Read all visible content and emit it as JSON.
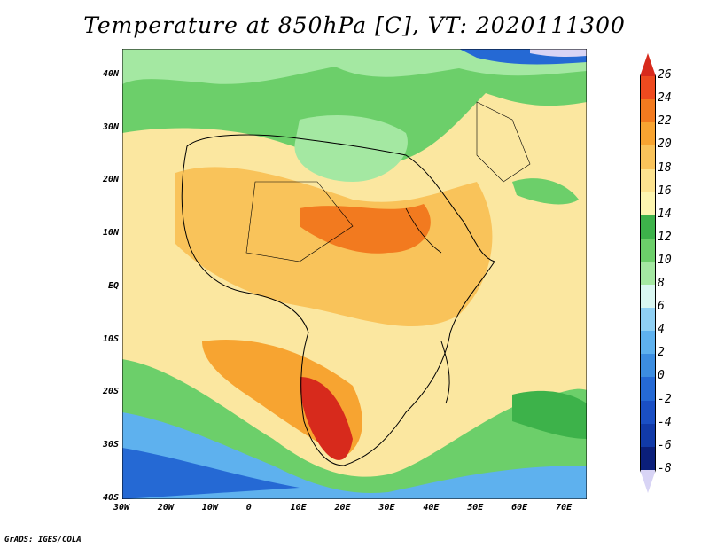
{
  "title": "Temperature at 850hPa [C], VT: 2020111300",
  "footer": "GrADS: IGES/COLA",
  "map": {
    "region": "Africa",
    "lon_range": [
      -30,
      75
    ],
    "lat_range": [
      -40,
      45
    ],
    "lon_ticks": [
      "30W",
      "20W",
      "10W",
      "0",
      "10E",
      "20E",
      "30E",
      "40E",
      "50E",
      "60E",
      "70E"
    ],
    "lat_ticks": [
      "40N",
      "30N",
      "20N",
      "10N",
      "EQ",
      "10S",
      "20S",
      "30S",
      "40S"
    ]
  },
  "colorbar": {
    "labels": [
      "26",
      "24",
      "22",
      "20",
      "18",
      "16",
      "14",
      "12",
      "10",
      "8",
      "6",
      "4",
      "2",
      "0",
      "-2",
      "-4",
      "-6",
      "-8"
    ],
    "colors": [
      "#d72a1c",
      "#ee4a1f",
      "#f27a1f",
      "#f7a431",
      "#f9c35a",
      "#fde38f",
      "#fdf6b0",
      "#3db24a",
      "#6ccf6a",
      "#a4e8a2",
      "#d9f7f2",
      "#8fd0f4",
      "#5eb1ee",
      "#3c8de0",
      "#2569d4",
      "#1a4fc4",
      "#113aa8",
      "#0b1f7a",
      "#d8d4f5"
    ]
  }
}
